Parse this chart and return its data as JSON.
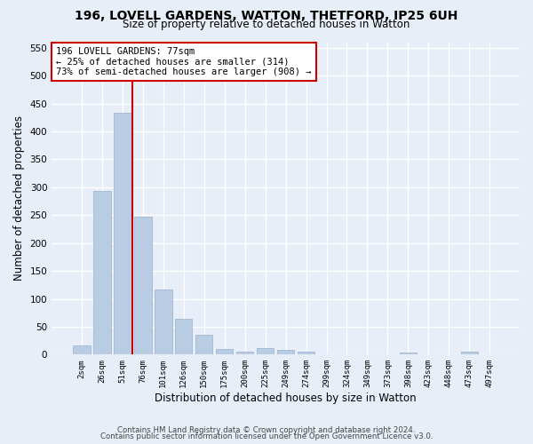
{
  "title1": "196, LOVELL GARDENS, WATTON, THETFORD, IP25 6UH",
  "title2": "Size of property relative to detached houses in Watton",
  "xlabel": "Distribution of detached houses by size in Watton",
  "ylabel": "Number of detached properties",
  "categories": [
    "2sqm",
    "26sqm",
    "51sqm",
    "76sqm",
    "101sqm",
    "126sqm",
    "150sqm",
    "175sqm",
    "200sqm",
    "225sqm",
    "249sqm",
    "274sqm",
    "299sqm",
    "324sqm",
    "349sqm",
    "373sqm",
    "398sqm",
    "423sqm",
    "448sqm",
    "473sqm",
    "497sqm"
  ],
  "values": [
    17,
    293,
    433,
    248,
    117,
    64,
    36,
    10,
    6,
    11,
    8,
    5,
    1,
    0,
    0,
    0,
    4,
    0,
    0,
    5,
    0
  ],
  "bar_color": "#b8cce4",
  "bar_edge_color": "#9ab0cc",
  "vline_color": "#cc0000",
  "annotation_line1": "196 LOVELL GARDENS: 77sqm",
  "annotation_line2": "← 25% of detached houses are smaller (314)",
  "annotation_line3": "73% of semi-detached houses are larger (908) →",
  "annotation_box_color": "#ffffff",
  "annotation_box_edge": "#cc0000",
  "bg_color": "#e8eef8",
  "grid_color": "#ffffff",
  "footer1": "Contains HM Land Registry data © Crown copyright and database right 2024.",
  "footer2": "Contains public sector information licensed under the Open Government Licence v3.0.",
  "ylim": [
    0,
    560
  ],
  "yticks": [
    0,
    50,
    100,
    150,
    200,
    250,
    300,
    350,
    400,
    450,
    500,
    550
  ]
}
